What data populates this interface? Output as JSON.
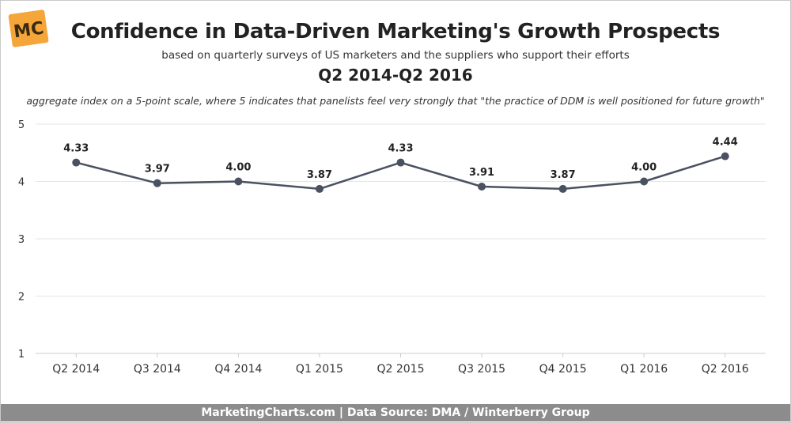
{
  "logo": {
    "text": "MC",
    "color": "#f4a63a"
  },
  "header": {
    "title": "Confidence in Data-Driven Marketing's Growth Prospects",
    "subtitle": "based on quarterly surveys of US marketers and the suppliers who support their efforts",
    "period": "Q2 2014-Q2 2016",
    "note": "aggregate index on a 5-point scale, where 5 indicates that panelists feel very strongly that \"the practice of DDM is well positioned for future growth\""
  },
  "chart_data": {
    "type": "line",
    "categories": [
      "Q2 2014",
      "Q3 2014",
      "Q4 2014",
      "Q1 2015",
      "Q2 2015",
      "Q3 2015",
      "Q4 2015",
      "Q1 2016",
      "Q2 2016"
    ],
    "series": [
      {
        "values": [
          4.33,
          3.97,
          4.0,
          3.87,
          4.33,
          3.91,
          3.87,
          4.0,
          4.44
        ],
        "labels": [
          "4.33",
          "3.97",
          "4.00",
          "3.87",
          "4.33",
          "3.91",
          "3.87",
          "4.00",
          "4.44"
        ],
        "color": "#4a5261"
      }
    ],
    "ylim": [
      1,
      5
    ],
    "yticks": [
      "1",
      "2",
      "3",
      "4",
      "5"
    ],
    "grid": true,
    "legend": "none"
  },
  "footer": {
    "text": "MarketingCharts.com | Data Source: DMA / Winterberry Group"
  }
}
